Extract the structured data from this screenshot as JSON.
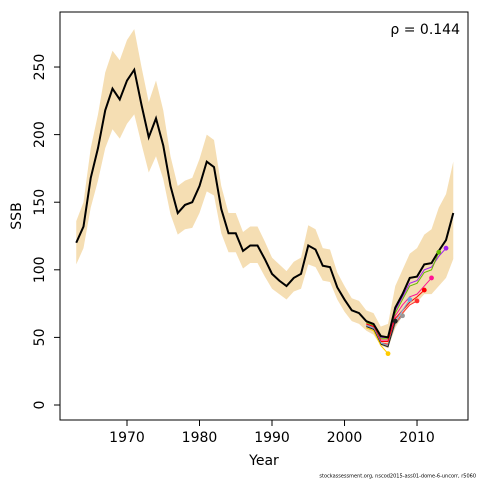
{
  "chart_data": {
    "type": "line",
    "x_label": "Year",
    "y_label": "SSB",
    "annotation": "ρ = 0.144",
    "footer": "stockassessment.org, nscod2015-ass01-dome-6-uncorr, r5060",
    "xlim": [
      1960.76,
      2017.03
    ],
    "ylim": [
      -11.1,
      290.7
    ],
    "xticks": [
      1970,
      1980,
      1990,
      2000,
      2010
    ],
    "yticks": [
      0,
      50,
      100,
      150,
      200,
      250
    ],
    "x": [
      1963,
      1964,
      1965,
      1966,
      1967,
      1968,
      1969,
      1970,
      1971,
      1972,
      1973,
      1974,
      1975,
      1976,
      1977,
      1978,
      1979,
      1980,
      1981,
      1982,
      1983,
      1984,
      1985,
      1986,
      1987,
      1988,
      1989,
      1990,
      1991,
      1992,
      1993,
      1994,
      1995,
      1996,
      1997,
      1998,
      1999,
      2000,
      2001,
      2002,
      2003,
      2004,
      2005,
      2006,
      2007,
      2008,
      2009,
      2010,
      2011,
      2012,
      2013,
      2014,
      2015
    ],
    "band": {
      "color": "#f5deb3",
      "lower": [
        104,
        116,
        146,
        166,
        190,
        204,
        197,
        208,
        215,
        193,
        172,
        184,
        167,
        141,
        126,
        130,
        131,
        142,
        158,
        155,
        127,
        113,
        113,
        101,
        105,
        105,
        95,
        86,
        82,
        78,
        84,
        86,
        104,
        102,
        92,
        91,
        78,
        69,
        62,
        60,
        55,
        52,
        44,
        42,
        57,
        66,
        75,
        76,
        82,
        82,
        88,
        94,
        108
      ],
      "upper": [
        136,
        150,
        190,
        215,
        246,
        262,
        255,
        270,
        278,
        250,
        224,
        240,
        218,
        184,
        162,
        166,
        168,
        182,
        200,
        196,
        162,
        142,
        142,
        128,
        132,
        132,
        121,
        109,
        104,
        99,
        106,
        109,
        133,
        130,
        116,
        115,
        98,
        88,
        79,
        77,
        70,
        68,
        58,
        60,
        88,
        100,
        112,
        116,
        126,
        130,
        146,
        156,
        180
      ]
    },
    "series": [
      {
        "color": "#000000",
        "values": [
          120,
          132,
          168,
          190,
          218,
          234,
          226,
          240,
          248,
          222,
          198,
          212,
          192,
          162,
          142,
          148,
          150,
          162,
          180,
          176,
          145,
          127,
          127,
          114,
          118,
          118,
          108,
          97,
          92,
          88,
          94,
          97,
          118,
          115,
          103,
          102,
          87,
          78,
          70,
          68,
          62,
          60,
          51,
          50,
          72,
          82,
          94,
          95,
          104,
          105,
          114,
          122,
          142
        ]
      }
    ],
    "retro": [
      {
        "color": "#a020f0",
        "x": [
          2003,
          2004,
          2005,
          2006,
          2007,
          2008,
          2009,
          2010,
          2011,
          2012,
          2013,
          2014
        ],
        "values": [
          62,
          60,
          50,
          50,
          70,
          80,
          90,
          92,
          100,
          102,
          110,
          116
        ]
      },
      {
        "color": "#66bb00",
        "x": [
          2003,
          2004,
          2005,
          2006,
          2007,
          2008,
          2009,
          2010,
          2011,
          2012,
          2013
        ],
        "values": [
          61,
          59,
          49,
          49,
          68,
          78,
          88,
          90,
          98,
          100,
          113
        ]
      },
      {
        "color": "#ff1493",
        "x": [
          2003,
          2004,
          2005,
          2006,
          2007,
          2008,
          2009,
          2010,
          2011,
          2012
        ],
        "values": [
          60,
          58,
          48,
          48,
          66,
          74,
          80,
          82,
          88,
          94
        ]
      },
      {
        "color": "#ff0000",
        "x": [
          2003,
          2004,
          2005,
          2006,
          2007,
          2008,
          2009,
          2010,
          2011
        ],
        "values": [
          60,
          58,
          47,
          47,
          64,
          70,
          76,
          80,
          85
        ]
      },
      {
        "color": "#ff3030",
        "x": [
          2003,
          2004,
          2005,
          2006,
          2007,
          2008,
          2009,
          2010
        ],
        "values": [
          59,
          57,
          46,
          45,
          60,
          68,
          74,
          77
        ]
      },
      {
        "color": "#6fa8dc",
        "x": [
          2003,
          2004,
          2005,
          2006,
          2007,
          2008,
          2009
        ],
        "values": [
          59,
          57,
          46,
          44,
          62,
          70,
          78
        ]
      },
      {
        "color": "#999999",
        "x": [
          2003,
          2004,
          2005,
          2006,
          2007,
          2008
        ],
        "values": [
          58,
          56,
          45,
          44,
          60,
          66
        ]
      },
      {
        "color": "#222222",
        "x": [
          2003,
          2004,
          2005,
          2006,
          2007
        ],
        "values": [
          58,
          56,
          45,
          43,
          62
        ]
      },
      {
        "color": "#ffcc00",
        "x": [
          2003,
          2004,
          2005,
          2006
        ],
        "values": [
          57,
          55,
          44,
          38
        ]
      }
    ]
  }
}
